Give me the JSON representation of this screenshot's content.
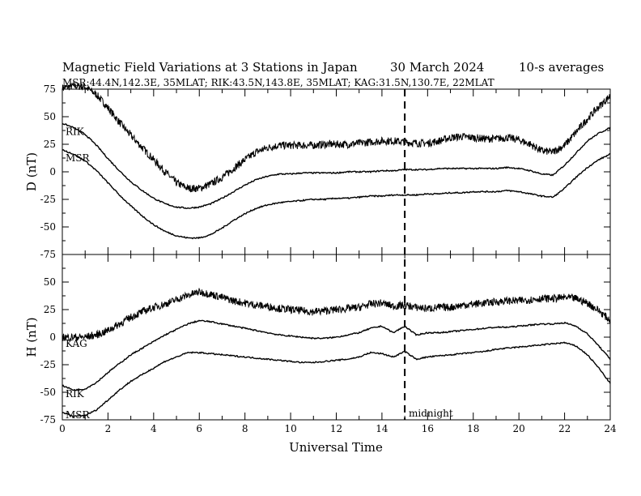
{
  "header": {
    "title": "Magnetic Field Variations at 3 Stations in Japan",
    "date": "30 March   2024",
    "averaging": "10-s averages",
    "stations_line": "MSR:44.4N,142.3E, 35MLAT;  RIK:43.5N,143.8E, 35MLAT;  KAG:31.5N,130.7E, 22MLAT"
  },
  "chart_data": [
    {
      "type": "line",
      "panel": "D",
      "ylabel": "D (nT)",
      "xlabel": "",
      "xlim": [
        0,
        24
      ],
      "ylim": [
        -75,
        75
      ],
      "yticks": [
        75,
        50,
        25,
        0,
        -25,
        -50,
        -75
      ],
      "xticks": [],
      "noise_visible": "KAG",
      "series": [
        {
          "name": "KAG",
          "x": [
            0,
            0.5,
            1,
            1.5,
            2,
            2.5,
            3,
            3.5,
            4,
            4.5,
            5,
            5.5,
            6,
            6.5,
            7,
            7.5,
            8,
            8.5,
            9,
            9.5,
            10,
            10.5,
            11,
            11.5,
            12,
            12.5,
            13,
            13.5,
            14,
            14.5,
            15,
            15.5,
            16,
            16.5,
            17,
            17.5,
            18,
            18.5,
            19,
            19.5,
            20,
            20.5,
            21,
            21.5,
            22,
            22.5,
            23,
            23.5,
            24
          ],
          "values": [
            76,
            78,
            77,
            70,
            58,
            45,
            33,
            22,
            11,
            0,
            -10,
            -15,
            -15,
            -11,
            -5,
            3,
            11,
            18,
            22,
            24,
            24,
            24,
            24,
            25,
            25,
            25,
            26,
            27,
            28,
            28,
            27,
            26,
            26,
            28,
            31,
            32,
            31,
            30,
            30,
            31,
            29,
            25,
            19,
            18,
            24,
            36,
            48,
            59,
            69
          ]
        },
        {
          "name": "RIK",
          "x": [
            0,
            0.5,
            1,
            1.5,
            2,
            2.5,
            3,
            3.5,
            4,
            4.5,
            5,
            5.5,
            6,
            6.5,
            7,
            7.5,
            8,
            8.5,
            9,
            9.5,
            10,
            10.5,
            11,
            11.5,
            12,
            12.5,
            13,
            13.5,
            14,
            14.5,
            15,
            15.5,
            16,
            16.5,
            17,
            17.5,
            18,
            18.5,
            19,
            19.5,
            20,
            20.5,
            21,
            21.5,
            22,
            22.5,
            23,
            23.5,
            24
          ],
          "values": [
            44,
            40,
            34,
            24,
            12,
            1,
            -9,
            -17,
            -24,
            -29,
            -32,
            -33,
            -32,
            -29,
            -24,
            -18,
            -12,
            -7,
            -4,
            -2,
            -2,
            -1,
            -1,
            -1,
            -1,
            0,
            0,
            0,
            1,
            1,
            2,
            2,
            2,
            3,
            3,
            3,
            3,
            3,
            3,
            4,
            3,
            1,
            -2,
            -3,
            6,
            17,
            28,
            35,
            40
          ]
        },
        {
          "name": "MSR",
          "x": [
            0,
            0.5,
            1,
            1.5,
            2,
            2.5,
            3,
            3.5,
            4,
            4.5,
            5,
            5.5,
            6,
            6.5,
            7,
            7.5,
            8,
            8.5,
            9,
            9.5,
            10,
            10.5,
            11,
            11.5,
            12,
            12.5,
            13,
            13.5,
            14,
            14.5,
            15,
            15.5,
            16,
            16.5,
            17,
            17.5,
            18,
            18.5,
            19,
            19.5,
            20,
            20.5,
            21,
            21.5,
            22,
            22.5,
            23,
            23.5,
            24
          ],
          "values": [
            20,
            16,
            10,
            1,
            -10,
            -21,
            -31,
            -40,
            -48,
            -54,
            -58,
            -60,
            -60,
            -57,
            -51,
            -44,
            -38,
            -33,
            -30,
            -28,
            -27,
            -26,
            -25,
            -25,
            -24,
            -24,
            -23,
            -22,
            -22,
            -21,
            -21,
            -21,
            -20,
            -20,
            -19,
            -19,
            -18,
            -18,
            -18,
            -17,
            -18,
            -20,
            -22,
            -23,
            -15,
            -5,
            4,
            11,
            16
          ]
        }
      ],
      "annotations": {
        "left_labels": [
          "RIK",
          "MSR"
        ]
      }
    },
    {
      "type": "line",
      "panel": "H",
      "ylabel": "H (nT)",
      "xlabel": "Universal Time",
      "xlim": [
        0,
        24
      ],
      "ylim": [
        -75,
        75
      ],
      "yticks": [
        50,
        25,
        0,
        -25,
        -50,
        -75
      ],
      "xticks": [
        0,
        2,
        4,
        6,
        8,
        10,
        12,
        14,
        16,
        18,
        20,
        22,
        24
      ],
      "noise_visible": "KAG",
      "series": [
        {
          "name": "KAG",
          "x": [
            0,
            0.5,
            1,
            1.5,
            2,
            2.5,
            3,
            3.5,
            4,
            4.5,
            5,
            5.5,
            6,
            6.5,
            7,
            7.5,
            8,
            8.5,
            9,
            9.5,
            10,
            10.5,
            11,
            11.5,
            12,
            12.5,
            13,
            13.5,
            14,
            14.5,
            15,
            15.5,
            16,
            16.5,
            17,
            17.5,
            18,
            18.5,
            19,
            19.5,
            20,
            20.5,
            21,
            21.5,
            22,
            22.5,
            23,
            23.5,
            24
          ],
          "values": [
            0,
            0,
            0,
            2,
            6,
            12,
            18,
            23,
            27,
            30,
            34,
            38,
            41,
            39,
            36,
            33,
            31,
            29,
            28,
            26,
            25,
            24,
            23,
            24,
            25,
            26,
            27,
            30,
            31,
            28,
            29,
            27,
            26,
            27,
            27,
            29,
            30,
            31,
            32,
            33,
            33,
            34,
            35,
            35,
            36,
            35,
            31,
            24,
            15
          ]
        },
        {
          "name": "RIK",
          "x": [
            0,
            0.5,
            1,
            1.5,
            2,
            2.5,
            3,
            3.5,
            4,
            4.5,
            5,
            5.5,
            6,
            6.5,
            7,
            7.5,
            8,
            8.5,
            9,
            9.5,
            10,
            10.5,
            11,
            11.5,
            12,
            12.5,
            13,
            13.5,
            14,
            14.5,
            15,
            15.5,
            16,
            16.5,
            17,
            17.5,
            18,
            18.5,
            19,
            19.5,
            20,
            20.5,
            21,
            21.5,
            22,
            22.5,
            23,
            23.5,
            24
          ],
          "values": [
            -44,
            -48,
            -47,
            -41,
            -32,
            -24,
            -16,
            -10,
            -4,
            2,
            7,
            12,
            15,
            14,
            12,
            10,
            8,
            6,
            4,
            2,
            1,
            0,
            -1,
            -1,
            0,
            2,
            4,
            8,
            10,
            4,
            10,
            2,
            4,
            4,
            5,
            6,
            7,
            8,
            9,
            9,
            10,
            11,
            12,
            12,
            13,
            10,
            3,
            -8,
            -20
          ]
        },
        {
          "name": "MSR",
          "x": [
            0,
            0.5,
            1,
            1.5,
            2,
            2.5,
            3,
            3.5,
            4,
            4.5,
            5,
            5.5,
            6,
            6.5,
            7,
            7.5,
            8,
            8.5,
            9,
            9.5,
            10,
            10.5,
            11,
            11.5,
            12,
            12.5,
            13,
            13.5,
            14,
            14.5,
            15,
            15.5,
            16,
            16.5,
            17,
            17.5,
            18,
            18.5,
            19,
            19.5,
            20,
            20.5,
            21,
            21.5,
            22,
            22.5,
            23,
            23.5,
            24
          ],
          "values": [
            -68,
            -72,
            -71,
            -66,
            -57,
            -48,
            -40,
            -34,
            -28,
            -22,
            -18,
            -14,
            -14,
            -15,
            -16,
            -17,
            -18,
            -19,
            -20,
            -21,
            -22,
            -23,
            -23,
            -22,
            -21,
            -20,
            -18,
            -14,
            -15,
            -18,
            -13,
            -20,
            -18,
            -17,
            -16,
            -15,
            -14,
            -13,
            -11,
            -10,
            -9,
            -8,
            -7,
            -6,
            -5,
            -8,
            -16,
            -28,
            -42
          ]
        }
      ],
      "annotations": {
        "left_labels": [
          "KAG",
          "RIK",
          "MSR"
        ],
        "marker_label": "midnight",
        "marker_x": 15
      }
    }
  ]
}
